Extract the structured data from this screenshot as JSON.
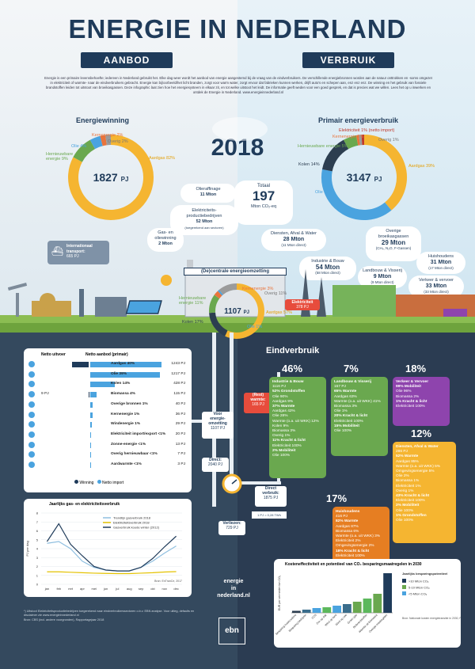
{
  "title": "ENERGIE IN NEDERLAND",
  "badges": {
    "supply": "AANBOD",
    "use": "VERBRUIK"
  },
  "intro": "Energie is een primaire levensbehoefte; iedereen in Nederland gebruikt het. Elke dag weer wordt het aanbod van energie aangestemd bij de vraag van de eindverbruikers. De verschillende energiebronnen worden aan de natuur onttrokken en -soms omgezet in elektriciteit of warmte- naar de eindverbruikers gebracht. Energie kan bij/oorbeeld/het licht branden, zorgt voor warm water, zorgt ervoor dat fabrieken kunnen werken, drijft auto's en schepen aan, enz enz enz. De winning en het gebruik van fossiele brandstoffen leiden tot uitstoot van broeikasgassen. Deze infographic laat zien hoe het energiesysteem in elkaar zit, en tot welke uitstoot het leidt. De informatie geeft weden voor een goed gesprek, en dat is precies wat we willen. Lees het op u inwerken en ontdek de Energie in Nederland. www.energieinnederland.nl",
  "year": "2018",
  "winning": {
    "title": "Energiewinning",
    "total": "1827",
    "unit": "PJ",
    "slices": [
      {
        "label": "Aardgas 82%",
        "value": 82,
        "color": "#f5b531"
      },
      {
        "label": "Hernieuwbare energie 9%",
        "value": 9,
        "color": "#6aa84f"
      },
      {
        "label": "Olie 4%",
        "value": 4,
        "color": "#4aa3df"
      },
      {
        "label": "Kernenergie 2%",
        "value": 2,
        "color": "#e9743c"
      },
      {
        "label": "Overig 2%",
        "value": 2,
        "color": "#9b9b9b"
      }
    ]
  },
  "verbruik": {
    "title": "Primair energieverbruik",
    "total": "3147",
    "unit": "PJ",
    "slices": [
      {
        "label": "Aardgas 39%",
        "value": 39,
        "color": "#f5b531"
      },
      {
        "label": "Olie 39%",
        "value": 39,
        "color": "#4aa3df"
      },
      {
        "label": "Kolen 14%",
        "value": 14,
        "color": "#2c3e50"
      },
      {
        "label": "Hernieuwbare energie 5%",
        "value": 5,
        "color": "#6aa84f"
      },
      {
        "label": "Kernenergie 1%",
        "value": 1,
        "color": "#e9743c"
      },
      {
        "label": "Overig 1%",
        "value": 1,
        "color": "#9b9b9b"
      },
      {
        "label": "Elektriciteit 1% (netto import)",
        "value": 1,
        "color": "#c0392b"
      }
    ]
  },
  "emissions": {
    "total_label": "Totaal",
    "total": "197",
    "total_unit": "Mton CO₂-eq",
    "raffinage": [
      "Olieraffinage",
      "11 Mton"
    ],
    "elektriciteit": [
      "Elektriciteits-",
      "productiebedrijven",
      "52 Mton",
      "(toegerekend aan sectoren)"
    ],
    "gaswinning": [
      "Gas- en",
      "oliewinning",
      "2 Mton"
    ],
    "diensten": [
      "Diensten, Afval & Water",
      "28 Mton",
      "(11 Mton direct)"
    ],
    "industrie": [
      "Industrie & Bouw",
      "54 Mton",
      "(58 Mton direct)"
    ],
    "overig": [
      "Overige",
      "broeikasgassen",
      "29 Mton",
      "(CH₄, N₂O, F-Gassen)"
    ],
    "landbouw": [
      "Landbouw & Visserij",
      "9 Mton",
      "(9 Mton direct)"
    ],
    "huishoudens": [
      "Huishoudens",
      "31 Mton",
      "(17 Mton direct)"
    ],
    "verkeer": [
      "Verkeer & vervoer",
      "33 Mton",
      "(33 Mton direct)"
    ]
  },
  "transport": [
    "Internationaal",
    "transport:",
    "665 PJ"
  ],
  "central": {
    "banner": "(De)centrale energieomzetting",
    "total": "1107",
    "unit": "PJ",
    "slices": [
      {
        "label": "Aardgas 57%",
        "value": 57,
        "color": "#f5b531"
      },
      {
        "label": "Kolen 17%",
        "value": 17,
        "color": "#2c3e50"
      },
      {
        "label": "Hernieuwbare energie 11%",
        "value": 11,
        "color": "#6aa84f"
      },
      {
        "label": "Kernenergie 3%",
        "value": 3,
        "color": "#e9743c"
      },
      {
        "label": "Olie 1%",
        "value": 1,
        "color": "#4aa3df"
      },
      {
        "label": "Overig 11%",
        "value": 11,
        "color": "#9b9b9b"
      }
    ],
    "elektriciteit": [
      "Elektriciteit",
      "378 PJ"
    ]
  },
  "table": {
    "head_left": "Netto uitvoer",
    "head_right": "Netto aanbod (primair)",
    "rows": [
      {
        "icon": "gas-flame-icon",
        "out": "445 PJ",
        "label": "Aardgas 40%",
        "in": "1243 PJ",
        "outv": 445,
        "inv": 1243
      },
      {
        "icon": "oil-drop-icon",
        "out": "",
        "label": "Olie 39%",
        "in": "1217 PJ",
        "outv": 0,
        "inv": 1217
      },
      {
        "icon": "coal-icon",
        "out": "",
        "label": "Kolen 14%",
        "in": "428 PJ",
        "outv": 0,
        "inv": 428
      },
      {
        "icon": "biomass-icon",
        "out": "9 PJ",
        "label": "Biomassa 4%",
        "in": "115 PJ",
        "outv": 9,
        "inv": 115
      },
      {
        "icon": "other-icon",
        "out": "",
        "label": "Overige bronnen 1%",
        "in": "40 PJ",
        "outv": 0,
        "inv": 40
      },
      {
        "icon": "nuclear-icon",
        "out": "",
        "label": "Kernenergie 1%",
        "in": "36 PJ",
        "outv": 0,
        "inv": 36
      },
      {
        "icon": "wind-icon",
        "out": "",
        "label": "Windenergie 1%",
        "in": "29 PJ",
        "outv": 0,
        "inv": 29
      },
      {
        "icon": "electricity-icon",
        "out": "",
        "label": "Elektriciteit import/export <1%",
        "in": "20 PJ",
        "outv": 0,
        "inv": 20
      },
      {
        "icon": "sun-icon",
        "out": "",
        "label": "Zonne-energie <1%",
        "in": "13 PJ",
        "outv": 0,
        "inv": 13
      },
      {
        "icon": "heat-icon",
        "out": "",
        "label": "Overig hernieuwbaar <1%",
        "in": "7 PJ",
        "outv": 0,
        "inv": 7
      },
      {
        "icon": "earth-icon",
        "out": "",
        "label": "Aardwarmte <1%",
        "in": "3 PJ",
        "outv": 0,
        "inv": 3
      }
    ],
    "legend": [
      "Winning",
      "Netto import"
    ]
  },
  "flows": {
    "voor": [
      "Voor",
      "energie-",
      "omzetting",
      "1107 PJ"
    ],
    "direct": [
      "Direct:",
      "2040 PJ"
    ],
    "direct_verbruik": [
      "Direct",
      "verbruik:",
      "1875 PJ"
    ],
    "verliezen": [
      "Verliezen:",
      "729 PJ"
    ],
    "rest": [
      "(Rest)",
      "warmte:",
      "165 PJ"
    ],
    "footnote": "1 PJ = 0,28 TWh"
  },
  "eind": {
    "title": "Eindverbruik",
    "tiles": [
      {
        "pct": "46%",
        "name": "Industrie & Bouw",
        "sub": "1116 PJ",
        "lines": [
          "52% Grondstoffen",
          "Olie 90%",
          "Aardgas 9%",
          "37% Warmte",
          "Aardgas 42%",
          "Olie 28%",
          "Warmte (o.a. uit WKK) 12%",
          "Kolen 9%",
          "Biomassa 3%",
          "Overig 1%",
          "11% Kracht & licht",
          "Elektriciteit 100%",
          "2% Mobiliteit",
          "Olie 100%"
        ]
      },
      {
        "pct": "7%",
        "name": "Landbouw & Visserij",
        "sub": "157 PJ",
        "lines": [
          "65% Warmte",
          "Aardgas 63%",
          "Warmte (o.a. uit WKK) 41%",
          "Biomassa 3%",
          "Olie 1%",
          "20% Kracht & licht",
          "Elektriciteit 100%",
          "15% Mobiliteit",
          "Olie 100%"
        ]
      },
      {
        "pct": "18%",
        "name": "Verkeer & Vervoer",
        "sub": "",
        "lines": [
          "99% Mobiliteit",
          "Olie 96%",
          "Biomassa 2%",
          "1% Kracht & licht",
          "Elektriciteit 100%"
        ]
      },
      {
        "pct": "12%",
        "name": "Diensten, Afval & Water",
        "sub": "286 PJ",
        "lines": [
          "52% Warmte",
          "Aardgas 85%",
          "Warmte (o.a. uit WKK) 5%",
          "Omgevingsenergie 5%",
          "Olie 2%",
          "Biomassa 1%",
          "Elektriciteit 1%",
          "Overig 1%",
          "43% Kracht & licht",
          "Elektriciteit 100%",
          "2% Mobiliteit",
          "Olie 100%",
          "1% Grondstoffen",
          "Olie 100%"
        ]
      },
      {
        "pct": "17%",
        "name": "Huishoudens",
        "sub": "416 PJ",
        "lines": [
          "82% Warmte",
          "Aardgas 87%",
          "Biomassa 6%",
          "Warmte (o.a. uit WKK) 3%",
          "Elektriciteit 2%",
          "Omgevingsenergie 2%",
          "18% Kracht & licht",
          "Elektriciteit 100%"
        ]
      }
    ]
  },
  "chart_data": [
    {
      "type": "line",
      "title": "Jaarlijks gas- en elektriciteitsverbruik",
      "ylabel": "PJ per dag",
      "x": [
        "jan",
        "feb",
        "mrt",
        "apr",
        "mei",
        "jun",
        "jul",
        "aug",
        "sep",
        "okt",
        "nov",
        "dec"
      ],
      "ylim": [
        0,
        8
      ],
      "yticks": [
        "0",
        "1",
        "2",
        "3",
        "4",
        "5",
        "6",
        "7",
        "8"
      ],
      "series": [
        {
          "name": "Trendlijn gasverbruik 2018",
          "color": "#8fbfe0",
          "values": [
            4.6,
            4.8,
            4.0,
            2.6,
            1.9,
            1.6,
            1.5,
            1.5,
            1.9,
            2.6,
            3.5,
            4.3
          ]
        },
        {
          "name": "Elektriciteitsverbruik 2018",
          "color": "#e4c200",
          "values": [
            1.4,
            1.4,
            1.35,
            1.3,
            1.25,
            1.22,
            1.2,
            1.2,
            1.25,
            1.3,
            1.38,
            1.42
          ]
        },
        {
          "name": "Gasverbruik koude winter (2012)",
          "color": "#1f3b5a",
          "values": [
            4.8,
            6.8,
            4.5,
            3.2,
            2.0,
            1.6,
            1.5,
            1.5,
            1.9,
            2.9,
            4.2,
            5.4
          ]
        }
      ],
      "source": "Bron: EnTranCe, 2017"
    },
    {
      "type": "bar",
      "title": "Kosteneffectiviteit en potentieel van CO₂ besparingsmaatregelen in 2030",
      "ylabel": "EUR per vermeden ton CO₂",
      "categories": [
        "Besparing huishoudens",
        "Besparing bedrijven",
        "CCS",
        "Zon op dak",
        "Wind op land",
        "Wind op zee",
        "Groen gas",
        "Biobrandstoffen",
        "Warmte uit biomassa",
        "Overige maatregelen"
      ],
      "values": [
        5,
        8,
        12,
        14,
        18,
        22,
        28,
        36,
        48,
        100
      ],
      "legend_title": "Jaarlijks besparingspotentieel",
      "legend": [
        ">10 Mton CO₂",
        "5-10 Mton CO₂",
        "<5 Mton CO₂"
      ],
      "source": "Bron: Nationale kosten energietransitie in 2030, PBL 2017"
    }
  ],
  "footer": {
    "site": [
      "energie",
      "in",
      "nederland.nl"
    ],
    "logo": "ebn",
    "note": "*) Uitstoot Elektriciteitsproductiebedrijven toegerekend naar eindverbruikerssectoren o.b.v. EBN analyse. Voor uitleg, defaults en disclaimer zie www.energieinnederland.nl",
    "bron": "Bron: CBS (incl. andere voorgronden), Rapportagejaar 2018"
  },
  "colors": {
    "navy": "#1f3b5a",
    "green": "#6aa84f",
    "purple": "#8e44ad",
    "yellow": "#f5b531",
    "orange": "#e67e22",
    "red": "#e74c3c"
  }
}
